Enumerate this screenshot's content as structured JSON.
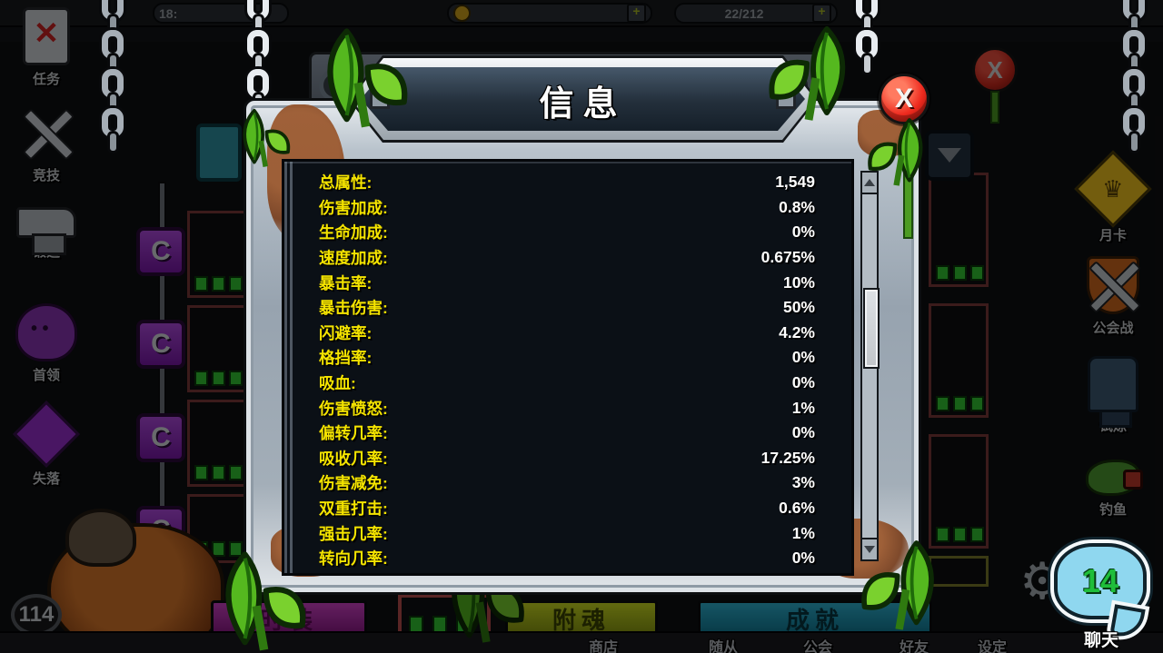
{
  "dialog": {
    "title": "信息",
    "close_label": "X",
    "stats": [
      {
        "label": "总属性:",
        "value": "1,549"
      },
      {
        "label": "伤害加成:",
        "value": "0.8%"
      },
      {
        "label": "生命加成:",
        "value": "0%"
      },
      {
        "label": "速度加成:",
        "value": "0.675%"
      },
      {
        "label": "暴击率:",
        "value": "10%"
      },
      {
        "label": "暴击伤害:",
        "value": "50%"
      },
      {
        "label": "闪避率:",
        "value": "4.2%"
      },
      {
        "label": "格挡率:",
        "value": "0%"
      },
      {
        "label": "吸血:",
        "value": "0%"
      },
      {
        "label": "伤害愤怒:",
        "value": "1%"
      },
      {
        "label": "偏转几率:",
        "value": "0%"
      },
      {
        "label": "吸收几率:",
        "value": "17.25%"
      },
      {
        "label": "伤害减免:",
        "value": "3%"
      },
      {
        "label": "双重打击:",
        "value": "0.6%"
      },
      {
        "label": "强击几率:",
        "value": "1%"
      },
      {
        "label": "转向几率:",
        "value": "0%"
      }
    ]
  },
  "screen_close_label": "X",
  "hud": {
    "timer": "18:",
    "counter": "22/212",
    "plus_label": "+",
    "coin_icon": "coin-icon"
  },
  "left_sidebar": [
    {
      "label": "任务",
      "icon": "quest-icon"
    },
    {
      "label": "竞技",
      "icon": "arena-icon"
    },
    {
      "label": "锻造",
      "icon": "forge-icon"
    },
    {
      "label": "首领",
      "icon": "boss-icon"
    },
    {
      "label": "失落",
      "icon": "gem-icon"
    }
  ],
  "right_sidebar": [
    {
      "label": "月卡",
      "icon": "month-card-icon"
    },
    {
      "label": "公会战",
      "icon": "guild-war-icon"
    },
    {
      "label": "试炼",
      "icon": "trial-icon"
    },
    {
      "label": "钓鱼",
      "icon": "fishing-icon"
    }
  ],
  "player": {
    "level": "114"
  },
  "c_badge_label": "C",
  "quest_x_mark": "✕",
  "crown_glyph": "♛",
  "gear_glyph": "⚙",
  "bottom_bar": {
    "fashion_button": "时装",
    "soul_button": "附魂",
    "achievement_button": "成就",
    "labels": [
      "商店",
      "随从",
      "公会",
      "好友",
      "设定"
    ]
  },
  "chat": {
    "count": "14",
    "label": "聊天"
  },
  "colors": {
    "stat_label": "#f5e400",
    "stat_value": "#ffffff",
    "close_red": "#ee2a1e",
    "chat_bubble": "#8fd7ef",
    "chat_count_green": "#1fbe3a",
    "content_bg": "#0b1016",
    "frame_metal": "#a3aeb8"
  }
}
